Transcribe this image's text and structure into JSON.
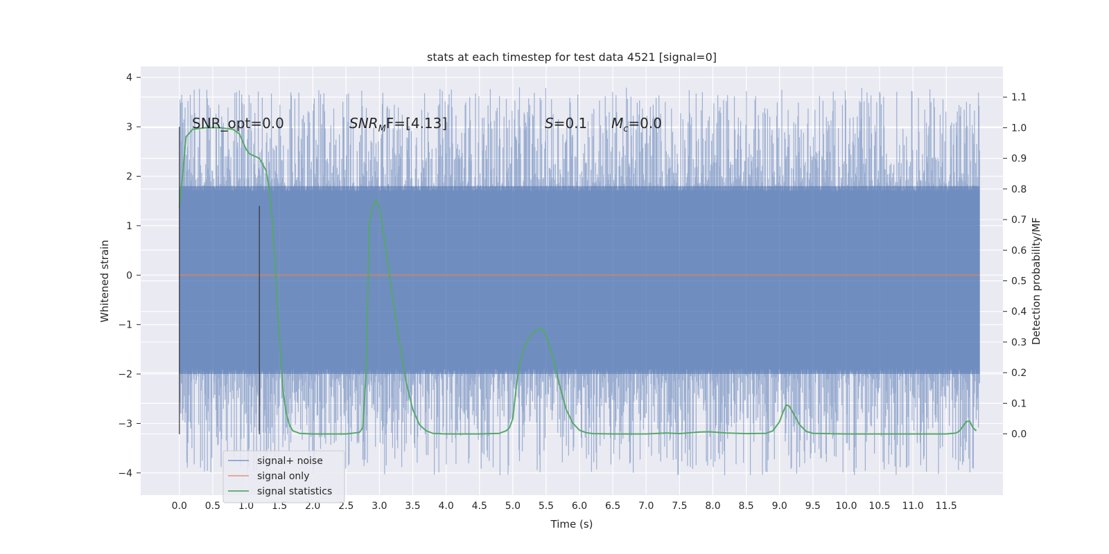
{
  "chart_data": {
    "type": "line",
    "title": "stats at each timestep for test data 4521 [signal=0]",
    "xlabel": "Time (s)",
    "ylabel_left": "Whitened strain",
    "ylabel_right": "Detection probability/MF",
    "xlim": [
      -0.58,
      12.35
    ],
    "ylim_left": [
      -4.45,
      4.22
    ],
    "ylim_right": [
      -0.2,
      1.2
    ],
    "x_ticks": [
      "0.0",
      "0.5",
      "1.0",
      "1.5",
      "2.0",
      "2.5",
      "3.0",
      "3.5",
      "4.0",
      "4.5",
      "5.0",
      "5.5",
      "6.0",
      "6.5",
      "7.0",
      "7.5",
      "8.0",
      "8.5",
      "9.0",
      "9.5",
      "10.0",
      "10.5",
      "11.0",
      "11.5"
    ],
    "y_ticks_left": [
      "−4",
      "−3",
      "−2",
      "−1",
      "0",
      "1",
      "2",
      "3",
      "4"
    ],
    "y_ticks_right": [
      "0.0",
      "0.1",
      "0.2",
      "0.3",
      "0.4",
      "0.5",
      "0.6",
      "0.7",
      "0.8",
      "0.9",
      "1.0",
      "1.1"
    ],
    "grid": true,
    "legend_position": "lower-left",
    "annotations": {
      "snr_opt": "SNR_opt=0.0",
      "snr_mf_base": "SNR",
      "snr_mf_sub": "M",
      "snr_mf_rest": "F=[4.13]",
      "s_label": "S",
      "s_value": "=0.1",
      "mc_base": "M",
      "mc_sub": "c",
      "mc_value": "=0.0"
    },
    "markers": [
      {
        "x": 0.0,
        "y_bottom": -3.22,
        "y_top": 3.0
      },
      {
        "x": 1.2,
        "y_bottom": -3.22,
        "y_top": 1.4
      }
    ],
    "noise_band": {
      "x_start": 0.0,
      "x_end": 12.0,
      "core_low": -2.0,
      "core_high": 1.8,
      "peak_min": -4.05,
      "peak_max": 3.8
    },
    "series": [
      {
        "name": "signal+ noise",
        "color": "#4c72b0",
        "axis": "left",
        "style": "dense noise strain"
      },
      {
        "name": "signal only",
        "color": "#dd8452",
        "axis": "left",
        "x": [
          0.0,
          12.0
        ],
        "y": [
          0.0,
          0.0
        ]
      },
      {
        "name": "signal statistics",
        "color": "#55a868",
        "axis": "right",
        "x": [
          0.0,
          0.05,
          0.1,
          0.2,
          0.4,
          0.6,
          0.8,
          0.9,
          1.0,
          1.05,
          1.1,
          1.2,
          1.3,
          1.35,
          1.4,
          1.45,
          1.5,
          1.55,
          1.6,
          1.65,
          1.7,
          1.8,
          2.0,
          2.5,
          2.7,
          2.75,
          2.8,
          2.85,
          2.9,
          2.95,
          3.0,
          3.1,
          3.2,
          3.3,
          3.4,
          3.5,
          3.6,
          3.7,
          3.8,
          4.0,
          4.5,
          4.8,
          4.9,
          4.95,
          5.0,
          5.05,
          5.1,
          5.2,
          5.3,
          5.4,
          5.45,
          5.5,
          5.6,
          5.7,
          5.8,
          5.9,
          6.0,
          6.1,
          6.2,
          6.5,
          7.0,
          7.3,
          7.5,
          7.8,
          7.95,
          8.2,
          8.5,
          8.8,
          8.9,
          9.0,
          9.05,
          9.1,
          9.15,
          9.2,
          9.3,
          9.4,
          9.5,
          10.0,
          10.5,
          11.0,
          11.5,
          11.65,
          11.7,
          11.8,
          11.85,
          11.9,
          11.95
        ],
        "y": [
          0.74,
          0.85,
          0.97,
          0.995,
          1.0,
          1.0,
          0.995,
          0.98,
          0.93,
          0.915,
          0.91,
          0.9,
          0.86,
          0.8,
          0.68,
          0.5,
          0.32,
          0.15,
          0.07,
          0.03,
          0.01,
          0.002,
          0.0,
          0.0,
          0.005,
          0.02,
          0.2,
          0.69,
          0.745,
          0.765,
          0.74,
          0.6,
          0.44,
          0.3,
          0.17,
          0.08,
          0.03,
          0.01,
          0.002,
          0.0,
          0.0,
          0.002,
          0.01,
          0.02,
          0.05,
          0.15,
          0.23,
          0.3,
          0.33,
          0.345,
          0.34,
          0.32,
          0.25,
          0.16,
          0.08,
          0.035,
          0.012,
          0.004,
          0.001,
          0.0,
          0.0,
          0.003,
          0.001,
          0.006,
          0.007,
          0.003,
          0.001,
          0.002,
          0.01,
          0.04,
          0.07,
          0.095,
          0.09,
          0.07,
          0.03,
          0.008,
          0.002,
          0.0,
          0.0,
          0.0,
          0.0,
          0.003,
          0.01,
          0.04,
          0.042,
          0.02,
          0.01
        ]
      }
    ]
  }
}
